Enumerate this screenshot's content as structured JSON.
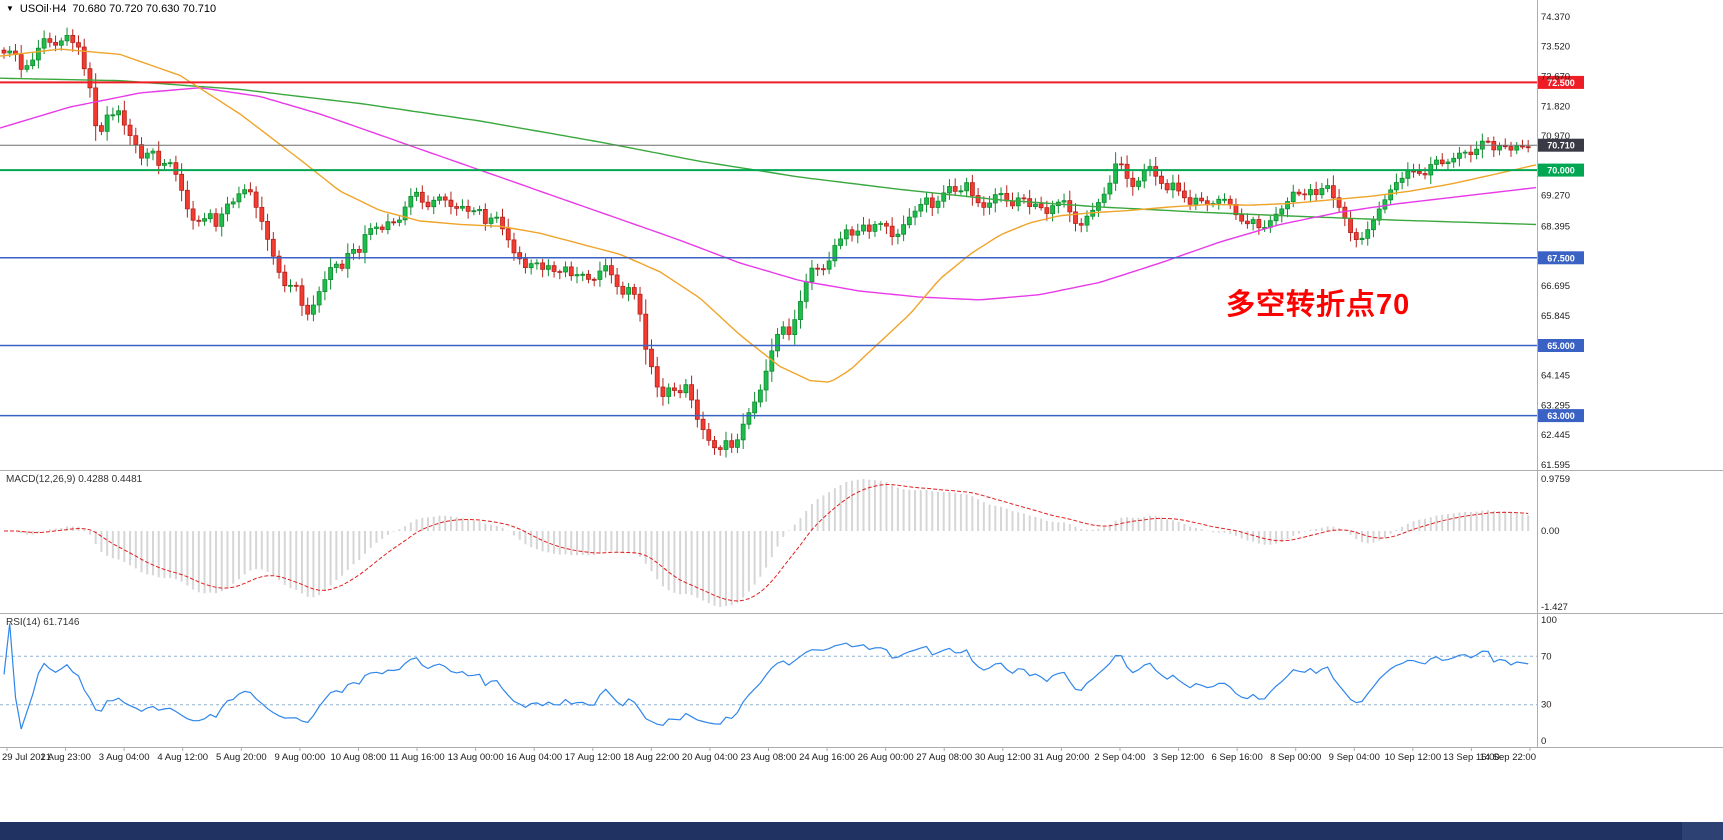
{
  "header": {
    "symbol": "USOil·H4",
    "ohlc": "70.680 70.720 70.630 70.710"
  },
  "annotation": {
    "text": "多空转折点70"
  },
  "indicators": {
    "macd_label": "MACD(12,26,9) 0.4288 0.4481",
    "rsi_label": "RSI(14) 61.7146",
    "macd_ticks": [
      [
        "0.9759",
        0.9759
      ],
      [
        "0.00",
        0
      ],
      [
        "-1.427",
        -1.427
      ]
    ],
    "rsi_ticks": [
      [
        "100",
        100
      ],
      [
        "70",
        70
      ],
      [
        "30",
        30
      ],
      [
        "0",
        0
      ]
    ],
    "rsi_levels": [
      70,
      30
    ]
  },
  "price_axis": {
    "ticks": [
      [
        "74.370",
        74.37
      ],
      [
        "73.520",
        73.52
      ],
      [
        "72.670",
        72.67
      ],
      [
        "71.820",
        71.82
      ],
      [
        "70.970",
        70.97
      ],
      [
        "69.270",
        69.27
      ],
      [
        "68.395",
        68.395
      ],
      [
        "66.695",
        66.695
      ],
      [
        "65.845",
        65.845
      ],
      [
        "64.145",
        64.145
      ],
      [
        "63.295",
        63.295
      ],
      [
        "62.445",
        62.445
      ],
      [
        "61.595",
        61.595
      ]
    ]
  },
  "hlines": [
    {
      "price": 72.5,
      "label": "72.500",
      "color": "#ee1c25",
      "width": 2
    },
    {
      "price": 70.71,
      "label": "70.710",
      "color": "#6f6f6f",
      "badge": "#3a3a46",
      "width": 1
    },
    {
      "price": 70.0,
      "label": "70.000",
      "color": "#00a651",
      "width": 2
    },
    {
      "price": 67.5,
      "label": "67.500",
      "color": "#3a62c4",
      "width": 1.5
    },
    {
      "price": 65.0,
      "label": "65.000",
      "color": "#3a62c4",
      "width": 1.5
    },
    {
      "price": 63.0,
      "label": "63.000",
      "color": "#3a62c4",
      "width": 1.5
    }
  ],
  "time_axis": {
    "labels": [
      "29 Jul 2021",
      "1 Aug 23:00",
      "3 Aug 04:00",
      "4 Aug 12:00",
      "5 Aug 20:00",
      "9 Aug 00:00",
      "10 Aug 08:00",
      "11 Aug 16:00",
      "13 Aug 00:00",
      "16 Aug 04:00",
      "17 Aug 12:00",
      "18 Aug 22:00",
      "20 Aug 04:00",
      "23 Aug 08:00",
      "24 Aug 16:00",
      "26 Aug 00:00",
      "27 Aug 08:00",
      "30 Aug 12:00",
      "31 Aug 20:00",
      "2 Sep 04:00",
      "3 Sep 12:00",
      "6 Sep 16:00",
      "8 Sep 00:00",
      "9 Sep 04:00",
      "10 Sep 12:00",
      "13 Sep 16:00",
      "14 Sep 22:00"
    ]
  },
  "colors": {
    "up": "#1ebd4b",
    "up_border": "#0d8c2f",
    "down": "#f23b31",
    "down_border": "#b5211b",
    "hline_red": "#ee1c25",
    "hline_green": "#00a651",
    "hline_blue": "#3a62c4",
    "bid_badge": "#3a3a46",
    "macd_hist": "#d6d6d6",
    "macd_signal": "#e02020",
    "rsi_line": "#2f86eb",
    "rsi_level": "#8fb2d4",
    "axis_text": "#1c1c1c",
    "grid_border": "#adadad",
    "annotation": "#ff0000",
    "scrollbar_track": "#0d1c40",
    "scrollbar_thumb": "#203261",
    "scrollbar_cap": "#2d4273",
    "background": "#ffffff"
  },
  "chart_data": {
    "type": "candlestick",
    "symbol": "USOil",
    "timeframe": "H4",
    "ohlc_current": {
      "open": 70.68,
      "high": 70.72,
      "low": 70.63,
      "close": 70.71
    },
    "price_range": [
      61.45,
      74.85
    ],
    "bar_spacing": 5.73,
    "noise": 0.06,
    "close_anchors": [
      [
        0,
        73.2
      ],
      [
        12,
        73.5
      ],
      [
        22,
        72.8
      ],
      [
        32,
        73.1
      ],
      [
        44,
        73.7
      ],
      [
        56,
        73.5
      ],
      [
        68,
        73.85
      ],
      [
        80,
        73.4
      ],
      [
        90,
        72.3
      ],
      [
        98,
        70.9
      ],
      [
        106,
        71.5
      ],
      [
        118,
        71.7
      ],
      [
        130,
        71.0
      ],
      [
        142,
        70.35
      ],
      [
        152,
        70.6
      ],
      [
        160,
        70.05
      ],
      [
        168,
        70.4
      ],
      [
        176,
        69.9
      ],
      [
        184,
        69.2
      ],
      [
        192,
        68.6
      ],
      [
        200,
        68.5
      ],
      [
        208,
        68.8
      ],
      [
        216,
        68.45
      ],
      [
        224,
        68.9
      ],
      [
        232,
        69.1
      ],
      [
        240,
        69.35
      ],
      [
        248,
        69.55
      ],
      [
        254,
        69.1
      ],
      [
        262,
        68.5
      ],
      [
        270,
        67.8
      ],
      [
        278,
        67.2
      ],
      [
        286,
        66.6
      ],
      [
        294,
        66.9
      ],
      [
        302,
        66.2
      ],
      [
        310,
        65.8
      ],
      [
        318,
        66.5
      ],
      [
        326,
        67.0
      ],
      [
        334,
        67.4
      ],
      [
        342,
        67.15
      ],
      [
        350,
        67.8
      ],
      [
        358,
        67.6
      ],
      [
        366,
        68.2
      ],
      [
        374,
        68.4
      ],
      [
        382,
        68.25
      ],
      [
        390,
        68.6
      ],
      [
        398,
        68.5
      ],
      [
        406,
        68.95
      ],
      [
        414,
        69.4
      ],
      [
        422,
        69.15
      ],
      [
        430,
        68.95
      ],
      [
        438,
        69.3
      ],
      [
        446,
        69.1
      ],
      [
        454,
        68.8
      ],
      [
        462,
        69.0
      ],
      [
        470,
        68.7
      ],
      [
        478,
        68.9
      ],
      [
        486,
        68.5
      ],
      [
        494,
        68.8
      ],
      [
        502,
        68.3
      ],
      [
        510,
        67.9
      ],
      [
        518,
        67.5
      ],
      [
        526,
        67.2
      ],
      [
        534,
        67.45
      ],
      [
        542,
        67.1
      ],
      [
        550,
        67.3
      ],
      [
        558,
        67.0
      ],
      [
        566,
        67.25
      ],
      [
        574,
        66.9
      ],
      [
        582,
        67.1
      ],
      [
        590,
        66.8
      ],
      [
        598,
        67.05
      ],
      [
        606,
        67.3
      ],
      [
        614,
        66.9
      ],
      [
        622,
        66.4
      ],
      [
        630,
        66.7
      ],
      [
        638,
        66.3
      ],
      [
        646,
        64.9
      ],
      [
        654,
        64.1
      ],
      [
        662,
        63.5
      ],
      [
        670,
        63.85
      ],
      [
        678,
        63.6
      ],
      [
        686,
        63.9
      ],
      [
        694,
        63.2
      ],
      [
        702,
        62.6
      ],
      [
        710,
        62.3
      ],
      [
        718,
        61.95
      ],
      [
        726,
        62.3
      ],
      [
        734,
        61.95
      ],
      [
        742,
        62.7
      ],
      [
        750,
        63.1
      ],
      [
        758,
        63.5
      ],
      [
        766,
        64.3
      ],
      [
        774,
        65.0
      ],
      [
        782,
        65.6
      ],
      [
        790,
        65.3
      ],
      [
        798,
        66.1
      ],
      [
        806,
        66.8
      ],
      [
        814,
        67.3
      ],
      [
        822,
        67.1
      ],
      [
        830,
        67.5
      ],
      [
        838,
        68.0
      ],
      [
        846,
        68.3
      ],
      [
        854,
        68.1
      ],
      [
        862,
        68.5
      ],
      [
        870,
        68.25
      ],
      [
        878,
        68.6
      ],
      [
        886,
        68.4
      ],
      [
        894,
        68.05
      ],
      [
        902,
        68.35
      ],
      [
        910,
        68.7
      ],
      [
        918,
        69.0
      ],
      [
        926,
        69.2
      ],
      [
        934,
        68.9
      ],
      [
        942,
        69.3
      ],
      [
        950,
        69.6
      ],
      [
        958,
        69.35
      ],
      [
        966,
        69.65
      ],
      [
        974,
        69.2
      ],
      [
        982,
        68.9
      ],
      [
        990,
        69.1
      ],
      [
        998,
        69.4
      ],
      [
        1006,
        69.15
      ],
      [
        1014,
        69.0
      ],
      [
        1022,
        69.3
      ],
      [
        1030,
        68.9
      ],
      [
        1038,
        69.1
      ],
      [
        1046,
        68.8
      ],
      [
        1054,
        69.0
      ],
      [
        1062,
        69.2
      ],
      [
        1070,
        68.8
      ],
      [
        1078,
        68.35
      ],
      [
        1086,
        68.6
      ],
      [
        1094,
        68.9
      ],
      [
        1102,
        69.2
      ],
      [
        1110,
        69.6
      ],
      [
        1118,
        70.35
      ],
      [
        1126,
        69.8
      ],
      [
        1134,
        69.5
      ],
      [
        1142,
        69.9
      ],
      [
        1150,
        70.1
      ],
      [
        1158,
        69.7
      ],
      [
        1166,
        69.45
      ],
      [
        1174,
        69.6
      ],
      [
        1182,
        69.3
      ],
      [
        1190,
        69.0
      ],
      [
        1198,
        69.2
      ],
      [
        1206,
        68.95
      ],
      [
        1214,
        69.1
      ],
      [
        1222,
        69.3
      ],
      [
        1230,
        69.0
      ],
      [
        1238,
        68.7
      ],
      [
        1246,
        68.45
      ],
      [
        1254,
        68.6
      ],
      [
        1262,
        68.25
      ],
      [
        1270,
        68.5
      ],
      [
        1278,
        68.8
      ],
      [
        1286,
        69.1
      ],
      [
        1294,
        69.4
      ],
      [
        1302,
        69.2
      ],
      [
        1310,
        69.5
      ],
      [
        1318,
        69.3
      ],
      [
        1326,
        69.6
      ],
      [
        1334,
        69.2
      ],
      [
        1342,
        68.8
      ],
      [
        1350,
        68.3
      ],
      [
        1358,
        67.95
      ],
      [
        1366,
        68.2
      ],
      [
        1374,
        68.6
      ],
      [
        1382,
        69.0
      ],
      [
        1390,
        69.4
      ],
      [
        1398,
        69.7
      ],
      [
        1406,
        69.9
      ],
      [
        1414,
        70.0
      ],
      [
        1422,
        69.8
      ],
      [
        1430,
        70.1
      ],
      [
        1438,
        70.3
      ],
      [
        1446,
        70.1
      ],
      [
        1454,
        70.4
      ],
      [
        1462,
        70.6
      ],
      [
        1470,
        70.4
      ],
      [
        1478,
        70.7
      ],
      [
        1486,
        70.95
      ],
      [
        1494,
        70.6
      ],
      [
        1502,
        70.8
      ],
      [
        1510,
        70.55
      ],
      [
        1518,
        70.7
      ],
      [
        1526,
        70.6
      ],
      [
        1533,
        70.71
      ]
    ],
    "moving_averages": [
      {
        "name": "slow",
        "color": "#3aa83e",
        "anchor_points": [
          [
            0,
            72.62
          ],
          [
            120,
            72.55
          ],
          [
            240,
            72.3
          ],
          [
            360,
            71.9
          ],
          [
            480,
            71.4
          ],
          [
            600,
            70.8
          ],
          [
            700,
            70.25
          ],
          [
            800,
            69.8
          ],
          [
            900,
            69.45
          ],
          [
            1000,
            69.15
          ],
          [
            1100,
            68.95
          ],
          [
            1200,
            68.8
          ],
          [
            1300,
            68.68
          ],
          [
            1400,
            68.57
          ],
          [
            1536,
            68.45
          ]
        ]
      },
      {
        "name": "medium",
        "color": "#e83ae8",
        "anchor_points": [
          [
            0,
            71.2
          ],
          [
            70,
            71.8
          ],
          [
            140,
            72.2
          ],
          [
            200,
            72.35
          ],
          [
            260,
            72.1
          ],
          [
            320,
            71.6
          ],
          [
            380,
            71.0
          ],
          [
            440,
            70.4
          ],
          [
            500,
            69.8
          ],
          [
            560,
            69.2
          ],
          [
            620,
            68.6
          ],
          [
            680,
            68.0
          ],
          [
            740,
            67.35
          ],
          [
            800,
            66.85
          ],
          [
            860,
            66.55
          ],
          [
            920,
            66.38
          ],
          [
            980,
            66.3
          ],
          [
            1040,
            66.45
          ],
          [
            1100,
            66.8
          ],
          [
            1160,
            67.35
          ],
          [
            1220,
            67.95
          ],
          [
            1280,
            68.45
          ],
          [
            1340,
            68.8
          ],
          [
            1400,
            69.05
          ],
          [
            1460,
            69.25
          ],
          [
            1536,
            69.5
          ]
        ]
      },
      {
        "name": "fast",
        "color": "#efa42a",
        "anchor_points": [
          [
            0,
            73.25
          ],
          [
            60,
            73.45
          ],
          [
            120,
            73.3
          ],
          [
            180,
            72.7
          ],
          [
            240,
            71.6
          ],
          [
            300,
            70.3
          ],
          [
            340,
            69.4
          ],
          [
            380,
            68.85
          ],
          [
            420,
            68.55
          ],
          [
            460,
            68.45
          ],
          [
            500,
            68.4
          ],
          [
            540,
            68.2
          ],
          [
            580,
            67.9
          ],
          [
            620,
            67.6
          ],
          [
            660,
            67.1
          ],
          [
            700,
            66.35
          ],
          [
            740,
            65.3
          ],
          [
            780,
            64.4
          ],
          [
            810,
            64.0
          ],
          [
            830,
            63.95
          ],
          [
            850,
            64.3
          ],
          [
            880,
            65.1
          ],
          [
            910,
            65.9
          ],
          [
            940,
            66.9
          ],
          [
            970,
            67.6
          ],
          [
            1000,
            68.15
          ],
          [
            1030,
            68.5
          ],
          [
            1060,
            68.7
          ],
          [
            1090,
            68.78
          ],
          [
            1130,
            68.85
          ],
          [
            1170,
            68.95
          ],
          [
            1210,
            69.02
          ],
          [
            1250,
            69.0
          ],
          [
            1290,
            69.05
          ],
          [
            1330,
            69.15
          ],
          [
            1370,
            69.25
          ],
          [
            1410,
            69.4
          ],
          [
            1450,
            69.6
          ],
          [
            1490,
            69.85
          ],
          [
            1536,
            70.15
          ]
        ]
      }
    ],
    "macd": {
      "fast": 12,
      "slow": 26,
      "signal": 9,
      "current": [
        0.4288,
        0.4481
      ],
      "range": [
        -1.427,
        0.9759
      ]
    },
    "rsi": {
      "period": 14,
      "current": 61.7146
    }
  }
}
